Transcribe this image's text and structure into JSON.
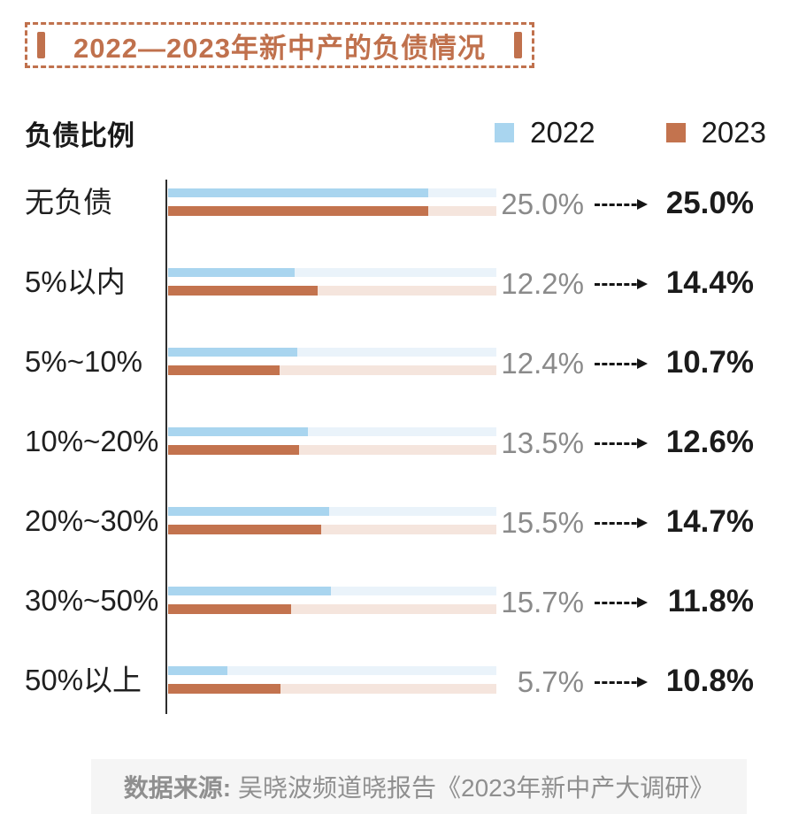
{
  "title": {
    "text": "2022—2023年新中产的负债情况"
  },
  "section": {
    "heading": "负债比例"
  },
  "legend": [
    {
      "label": "2022",
      "color": "#A9D5EF"
    },
    {
      "label": "2023",
      "color": "#C3734E"
    }
  ],
  "colors": {
    "accent": "#C0714D",
    "blue": "#A9D5EF",
    "blue_track": "#EAF3FA",
    "orange": "#C3734E",
    "orange_track": "#F5E5DD"
  },
  "chart_data": {
    "type": "bar",
    "orientation": "horizontal",
    "title": "2022—2023年新中产的负债情况",
    "xlabel": "",
    "ylabel": "负债比例",
    "axis_max": 31.6,
    "grid": false,
    "legend_position": "top-right",
    "categories": [
      "无负债",
      "5%以内",
      "5%~10%",
      "10%~20%",
      "20%~30%",
      "30%~50%",
      "50%以上"
    ],
    "series": [
      {
        "name": "2022",
        "values": [
          25.0,
          12.2,
          12.4,
          13.5,
          15.5,
          15.7,
          5.7
        ]
      },
      {
        "name": "2023",
        "values": [
          25.0,
          14.4,
          10.7,
          12.6,
          14.7,
          11.8,
          10.8
        ]
      }
    ],
    "value_label_format": "{value}%"
  },
  "footer": {
    "source_label": "数据来源:",
    "source_text": "吴晓波频道晓报告《2023年新中产大调研》"
  }
}
